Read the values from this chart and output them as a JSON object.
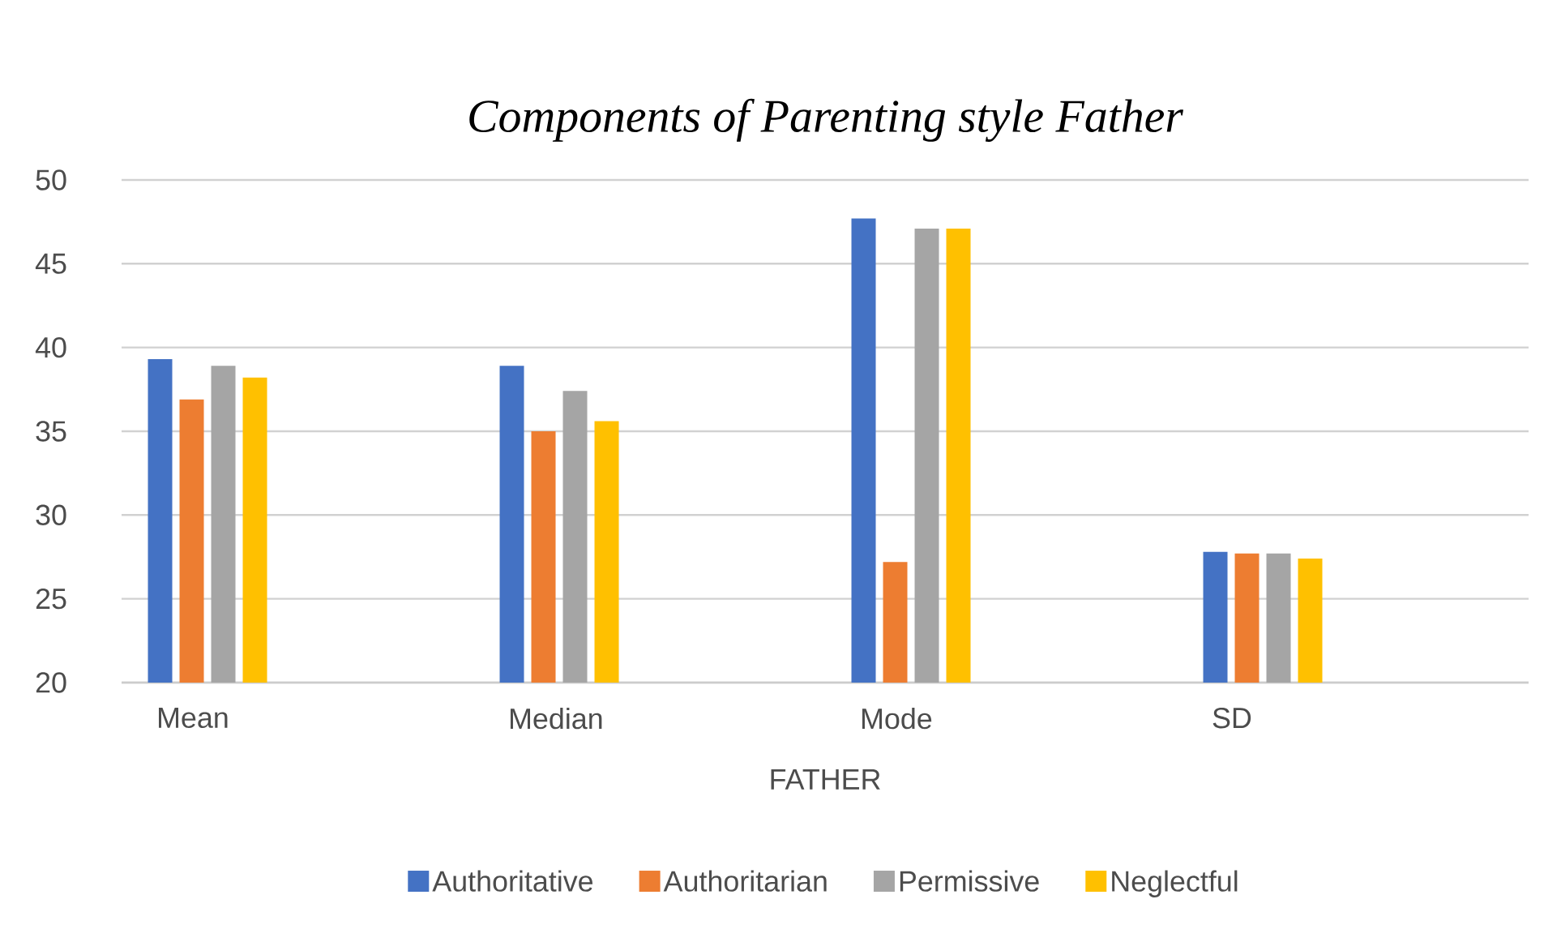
{
  "chart_data": {
    "type": "bar",
    "title": "*Components of Parenting style Father*",
    "xlabel": "FATHER",
    "categories": [
      "Mean",
      "Median",
      "Mode",
      "SD"
    ],
    "series": [
      {
        "name": "Authoritative",
        "color": "#4472c4",
        "values": [
          39.3,
          38.9,
          47.7,
          27.8
        ]
      },
      {
        "name": "Authoritarian",
        "color": "#ed7d31",
        "values": [
          36.9,
          35.0,
          27.2,
          27.7
        ]
      },
      {
        "name": "Permissive",
        "color": "#a5a5a5",
        "values": [
          38.9,
          37.4,
          47.1,
          27.7
        ]
      },
      {
        "name": "Neglectful",
        "color": "#ffc000",
        "values": [
          38.2,
          35.6,
          47.1,
          27.4
        ]
      }
    ],
    "ylim": [
      20,
      50
    ],
    "yticks": [
      20,
      25,
      30,
      35,
      40,
      45,
      50
    ],
    "grid": "y",
    "legend": "bottom"
  }
}
